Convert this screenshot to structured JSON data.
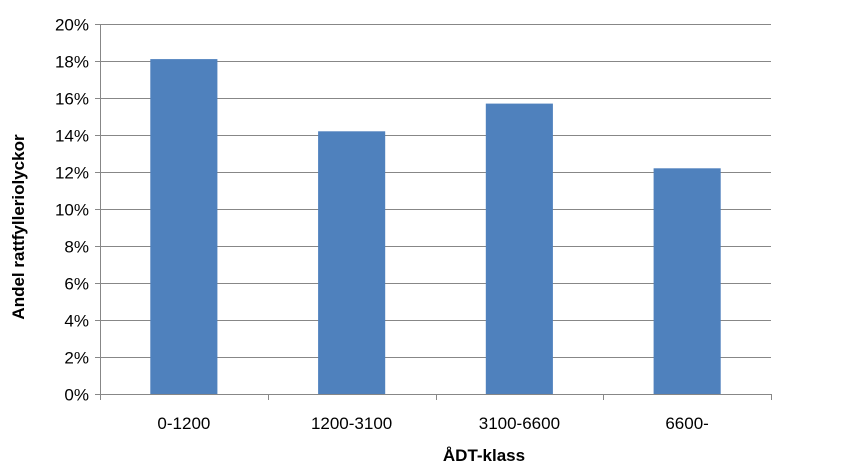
{
  "chart_data": {
    "type": "bar",
    "title": "",
    "xlabel": "ÅDT-klass",
    "ylabel": "Andel rattfylleriolyckor",
    "categories": [
      "0-1200",
      "1200-3100",
      "3100-6600",
      "6600-"
    ],
    "values": [
      18.1,
      14.2,
      15.7,
      12.2
    ],
    "unit": "%",
    "ylim": [
      0,
      20
    ],
    "yticks": [
      0,
      2,
      4,
      6,
      8,
      10,
      12,
      14,
      16,
      18,
      20
    ],
    "ytick_labels": [
      "0%",
      "2%",
      "4%",
      "6%",
      "8%",
      "10%",
      "12%",
      "14%",
      "16%",
      "18%",
      "20%"
    ],
    "grid": true,
    "legend": "none",
    "bar_color": "#4f81bd",
    "grid_color": "#878787"
  }
}
